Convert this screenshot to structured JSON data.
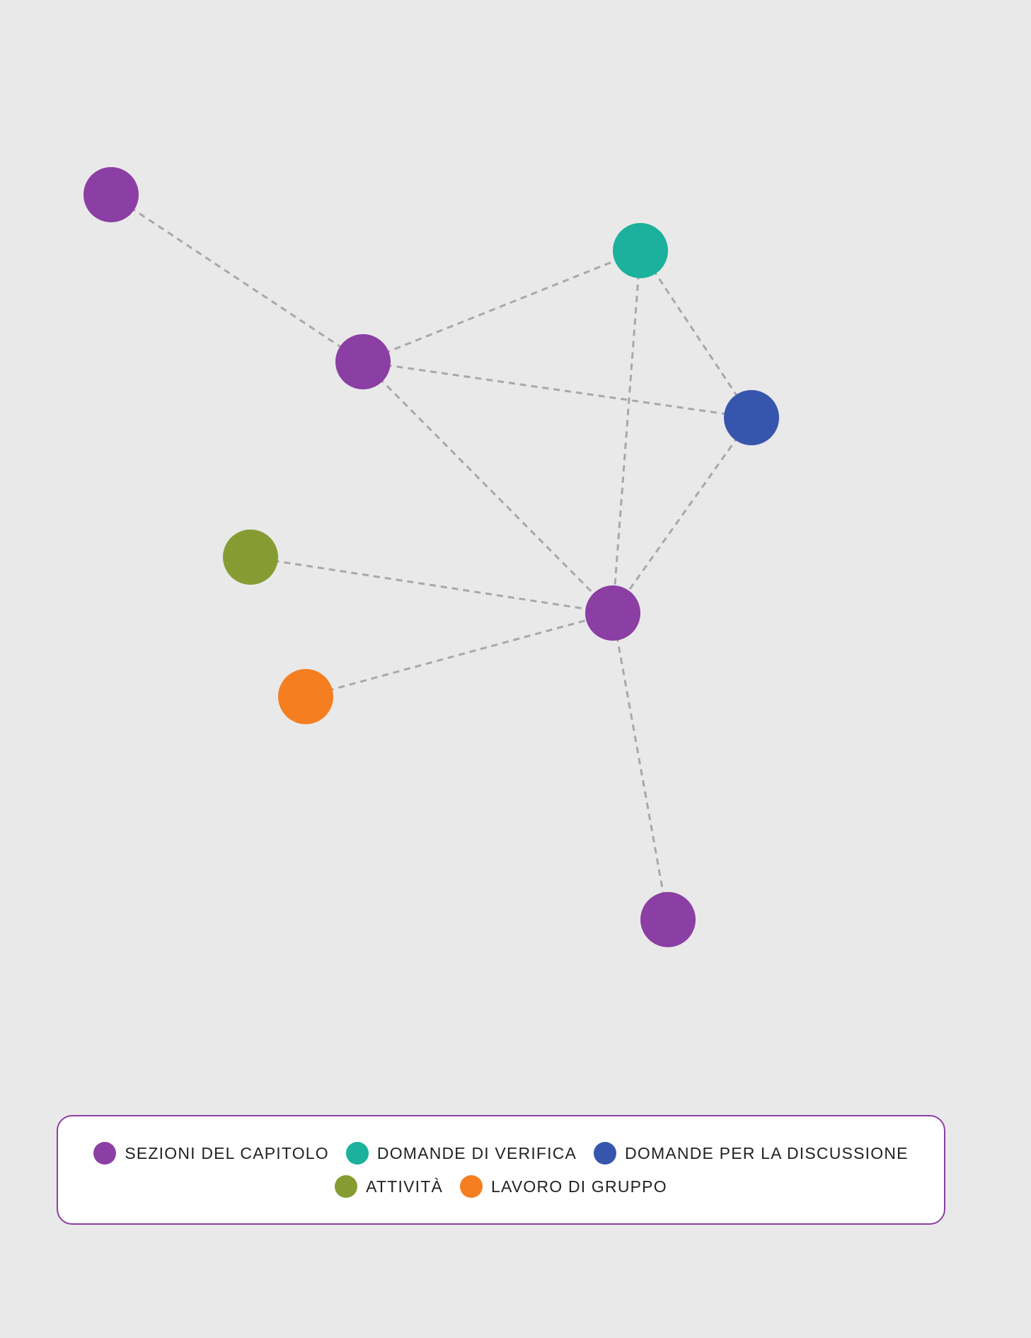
{
  "legend": [
    {
      "label": "SEZIONI DEL CAPITOLO",
      "color": "#8b3ea3"
    },
    {
      "label": "DOMANDE DI VERIFICA",
      "color": "#1bb19c"
    },
    {
      "label": "DOMANDE PER LA DISCUSSIONE",
      "color": "#3656ae"
    },
    {
      "label": "ATTIVITÀ",
      "color": "#869c33"
    },
    {
      "label": "LAVORO DI GRUPPO",
      "color": "#f47e20"
    }
  ],
  "nodes": [
    {
      "id": "s1",
      "category": 0
    },
    {
      "id": "s2",
      "category": 0
    },
    {
      "id": "q",
      "category": 1
    },
    {
      "id": "d",
      "category": 2
    },
    {
      "id": "a",
      "category": 3
    },
    {
      "id": "hub",
      "category": 0
    },
    {
      "id": "g",
      "category": 4
    },
    {
      "id": "s3",
      "category": 0
    }
  ],
  "edges": [
    [
      "s1",
      "s2"
    ],
    [
      "s2",
      "q"
    ],
    [
      "s2",
      "d"
    ],
    [
      "s2",
      "hub"
    ],
    [
      "q",
      "d"
    ],
    [
      "q",
      "hub"
    ],
    [
      "d",
      "hub"
    ],
    [
      "a",
      "hub"
    ],
    [
      "g",
      "hub"
    ],
    [
      "hub",
      "s3"
    ]
  ],
  "edge_color": "#a8a8a8"
}
